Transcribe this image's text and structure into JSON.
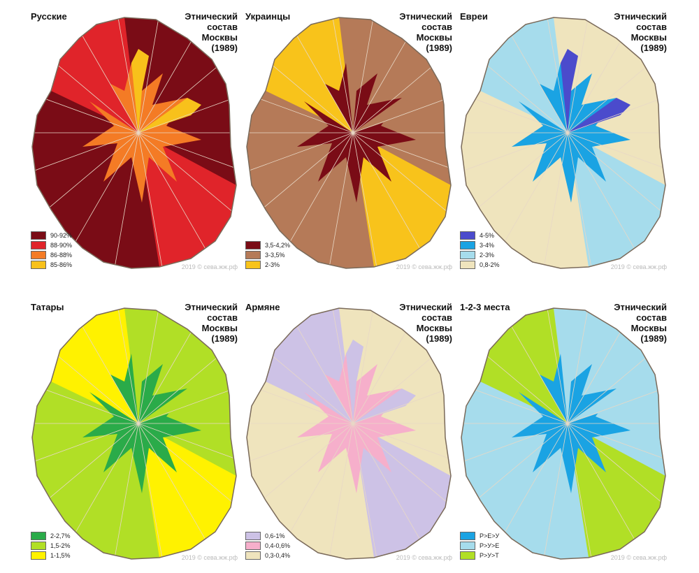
{
  "subtitle": [
    "Этнический",
    "состав",
    "Москвы",
    "(1989)"
  ],
  "credit": "2019 © сева.жж.рф",
  "panels": [
    {
      "title": "Русские",
      "legend": [
        {
          "label": "90-92%",
          "color": "#7a0c16"
        },
        {
          "label": "88-90%",
          "color": "#e0242a"
        },
        {
          "label": "86-88%",
          "color": "#f47b25"
        },
        {
          "label": "85-86%",
          "color": "#f8c11b"
        }
      ],
      "fill": [
        "#7a0c16",
        "#e0242a",
        "#f47b25",
        "#f8c11b"
      ]
    },
    {
      "title": "Украинцы",
      "legend": [
        {
          "label": "3,5-4,2%",
          "color": "#7a0c16"
        },
        {
          "label": "3-3,5%",
          "color": "#b57a58"
        },
        {
          "label": "2-3%",
          "color": "#f8c31b"
        }
      ],
      "fill": [
        "#b57a58",
        "#f8c31b",
        "#7a0c16",
        "#b57a58"
      ]
    },
    {
      "title": "Евреи",
      "legend": [
        {
          "label": "4-5%",
          "color": "#4b4bcc"
        },
        {
          "label": "3-4%",
          "color": "#1aa3e3"
        },
        {
          "label": "2-3%",
          "color": "#a6dcec"
        },
        {
          "label": "0,8-2%",
          "color": "#efe4bd"
        }
      ],
      "fill": [
        "#efe4bd",
        "#a6dcec",
        "#1aa3e3",
        "#4b4bcc"
      ]
    },
    {
      "title": "Татары",
      "legend": [
        {
          "label": "2-2,7%",
          "color": "#2aab49"
        },
        {
          "label": "1,5-2%",
          "color": "#b1df26"
        },
        {
          "label": "1-1,5%",
          "color": "#fff200"
        }
      ],
      "fill": [
        "#b1df26",
        "#fff200",
        "#2aab49",
        "#b1df26"
      ]
    },
    {
      "title": "Армяне",
      "legend": [
        {
          "label": "0,6-1%",
          "color": "#cdc2e6"
        },
        {
          "label": "0,4-0,6%",
          "color": "#f6afcb"
        },
        {
          "label": "0,3-0,4%",
          "color": "#efe4bd"
        }
      ],
      "fill": [
        "#efe4bd",
        "#cdc2e6",
        "#f6afcb",
        "#cdc2e6"
      ]
    },
    {
      "title": "1-2-3 места",
      "legend": [
        {
          "label": "Р>Е>У",
          "color": "#1aa3e3"
        },
        {
          "label": "Р>У>Е",
          "color": "#a6dcec"
        },
        {
          "label": "Р>У>Т",
          "color": "#b1df26"
        }
      ],
      "fill": [
        "#a6dcec",
        "#b1df26",
        "#1aa3e3",
        "#a6dcec"
      ]
    }
  ]
}
